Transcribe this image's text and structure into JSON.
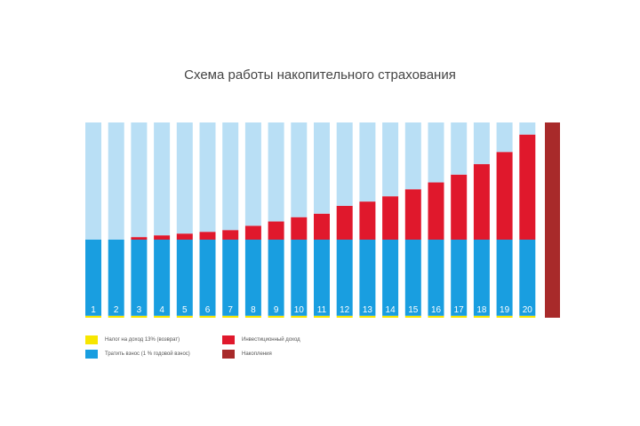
{
  "chart_data": {
    "type": "bar",
    "title": "Схема работы накопительного страхования",
    "categories": [
      "1",
      "2",
      "3",
      "4",
      "5",
      "6",
      "7",
      "8",
      "9",
      "10",
      "11",
      "12",
      "13",
      "14",
      "15",
      "16",
      "17",
      "18",
      "19",
      "20"
    ],
    "ylim": [
      0,
      100
    ],
    "series": [
      {
        "name": "Налог на доход 13% (возврат)",
        "values": [
          1,
          1,
          1,
          1,
          1,
          1,
          1,
          1,
          1,
          1,
          1,
          1,
          1,
          1,
          1,
          1,
          1,
          1,
          1,
          1
        ]
      },
      {
        "name": "Тратить взнос (1 % годовой взнос)",
        "values": [
          39,
          39,
          39,
          39,
          39,
          39,
          39,
          39,
          39,
          39,
          39,
          39,
          39,
          39,
          39,
          39,
          39,
          39,
          39,
          39
        ]
      },
      {
        "name": "Инвестиционный доход",
        "values": [
          0,
          0,
          1.3,
          2.2,
          3.1,
          4,
          4.9,
          7.1,
          9.3,
          11.5,
          13.3,
          17.3,
          19.5,
          22.2,
          25.8,
          29.3,
          33.3,
          38.7,
          44.9,
          53.8
        ]
      },
      {
        "name": "Накопления",
        "values": [
          60,
          60,
          58.7,
          57.8,
          56.9,
          56,
          55.1,
          52.9,
          50.7,
          48.5,
          46.7,
          42.7,
          40.5,
          37.8,
          34.2,
          30.7,
          26.7,
          21.3,
          15.1,
          6.2
        ]
      }
    ],
    "final_value": 100,
    "colors": {
      "capacity": "#b9dff5",
      "contribution": "#199ee0",
      "tax": "#f7e600",
      "income": "#e0182c",
      "total": "#a82a2a"
    },
    "legend": [
      {
        "label": "Налог на доход 13% (возврат)",
        "color": "#f7e600"
      },
      {
        "label": "Тратить взнос (1 % годовой взнос)",
        "color": "#199ee0"
      },
      {
        "label": "Инвестиционный доход",
        "color": "#e0182c"
      },
      {
        "label": "Накопления",
        "color": "#a82a2a"
      }
    ]
  }
}
